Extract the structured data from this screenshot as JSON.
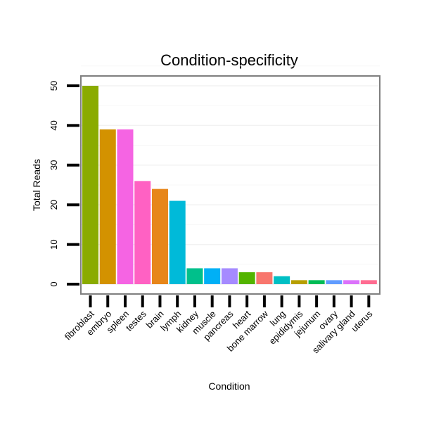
{
  "chart_data": {
    "type": "bar",
    "title": "Condition-specificity",
    "xlabel": "Condition",
    "ylabel": "Total Reads",
    "ylim": [
      -2.5,
      55
    ],
    "yticks": [
      0,
      10,
      20,
      30,
      40,
      50
    ],
    "grid": true,
    "categories": [
      "fibroblast",
      "embryo",
      "spleen",
      "testes",
      "brain",
      "lymph",
      "kidney",
      "muscle",
      "pancreas",
      "heart",
      "bone marrow",
      "lung",
      "epididymis",
      "jejunum",
      "ovary",
      "salivary gland",
      "uterus"
    ],
    "values": [
      50,
      39,
      39,
      26,
      24,
      21,
      4,
      4,
      4,
      3,
      3,
      2,
      1,
      1,
      1,
      1,
      1
    ],
    "colors": [
      "#8AAB00",
      "#D39200",
      "#F564E3",
      "#FF61C3",
      "#E7861A",
      "#00BAD9",
      "#00C08B",
      "#00B0F6",
      "#A58AFF",
      "#53B400",
      "#F8766D",
      "#00BFC4",
      "#B79F00",
      "#00BC56",
      "#619CFF",
      "#DB72FB",
      "#FF6C91"
    ]
  }
}
